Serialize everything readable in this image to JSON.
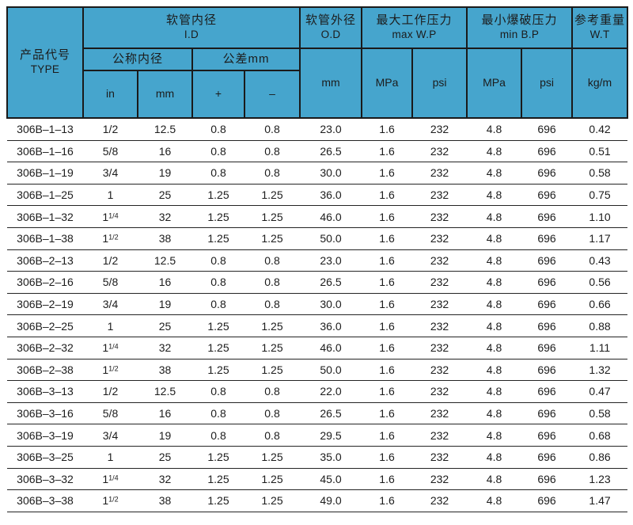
{
  "colors": {
    "header_bg": "#46a5cd",
    "border": "#1a1a1a",
    "body_text": "#1c1c1c"
  },
  "table": {
    "header": {
      "type_zh": "产品代号",
      "type_en": "TYPE",
      "id_zh": "软管内径",
      "id_en": "I.D",
      "nominal": "公称内径",
      "tolerance": "公差mm",
      "unit_in": "in",
      "unit_mm": "mm",
      "plus": "+",
      "minus": "–",
      "od_zh": "软管外径",
      "od_en": "O.D",
      "od_unit": "mm",
      "wp_zh": "最大工作压力",
      "wp_en": "max W.P",
      "wp_unit_mpa": "MPa",
      "wp_unit_psi": "psi",
      "bp_zh": "最小爆破压力",
      "bp_en": "min B.P",
      "bp_unit_mpa": "MPa",
      "bp_unit_psi": "psi",
      "wt_zh": "参考重量",
      "wt_en": "W.T",
      "wt_unit": "kg/m"
    },
    "columns": [
      "code",
      "in",
      "mm",
      "plus",
      "minus",
      "od",
      "wp-mpa",
      "wp-psi",
      "bp-mpa",
      "bp-psi",
      "wt"
    ],
    "rows": [
      [
        "306B–1–13",
        "1/2",
        "12.5",
        "0.8",
        "0.8",
        "23.0",
        "1.6",
        "232",
        "4.8",
        "696",
        "0.42"
      ],
      [
        "306B–1–16",
        "5/8",
        "16",
        "0.8",
        "0.8",
        "26.5",
        "1.6",
        "232",
        "4.8",
        "696",
        "0.51"
      ],
      [
        "306B–1–19",
        "3/4",
        "19",
        "0.8",
        "0.8",
        "30.0",
        "1.6",
        "232",
        "4.8",
        "696",
        "0.58"
      ],
      [
        "306B–1–25",
        "1",
        "25",
        "1.25",
        "1.25",
        "36.0",
        "1.6",
        "232",
        "4.8",
        "696",
        "0.75"
      ],
      [
        "306B–1–32",
        "1 1/4",
        "32",
        "1.25",
        "1.25",
        "46.0",
        "1.6",
        "232",
        "4.8",
        "696",
        "1.10"
      ],
      [
        "306B–1–38",
        "1 1/2",
        "38",
        "1.25",
        "1.25",
        "50.0",
        "1.6",
        "232",
        "4.8",
        "696",
        "1.17"
      ],
      [
        "306B–2–13",
        "1/2",
        "12.5",
        "0.8",
        "0.8",
        "23.0",
        "1.6",
        "232",
        "4.8",
        "696",
        "0.43"
      ],
      [
        "306B–2–16",
        "5/8",
        "16",
        "0.8",
        "0.8",
        "26.5",
        "1.6",
        "232",
        "4.8",
        "696",
        "0.56"
      ],
      [
        "306B–2–19",
        "3/4",
        "19",
        "0.8",
        "0.8",
        "30.0",
        "1.6",
        "232",
        "4.8",
        "696",
        "0.66"
      ],
      [
        "306B–2–25",
        "1",
        "25",
        "1.25",
        "1.25",
        "36.0",
        "1.6",
        "232",
        "4.8",
        "696",
        "0.88"
      ],
      [
        "306B–2–32",
        "1 1/4",
        "32",
        "1.25",
        "1.25",
        "46.0",
        "1.6",
        "232",
        "4.8",
        "696",
        "1.11"
      ],
      [
        "306B–2–38",
        "1 1/2",
        "38",
        "1.25",
        "1.25",
        "50.0",
        "1.6",
        "232",
        "4.8",
        "696",
        "1.32"
      ],
      [
        "306B–3–13",
        "1/2",
        "12.5",
        "0.8",
        "0.8",
        "22.0",
        "1.6",
        "232",
        "4.8",
        "696",
        "0.47"
      ],
      [
        "306B–3–16",
        "5/8",
        "16",
        "0.8",
        "0.8",
        "26.5",
        "1.6",
        "232",
        "4.8",
        "696",
        "0.58"
      ],
      [
        "306B–3–19",
        "3/4",
        "19",
        "0.8",
        "0.8",
        "29.5",
        "1.6",
        "232",
        "4.8",
        "696",
        "0.68"
      ],
      [
        "306B–3–25",
        "1",
        "25",
        "1.25",
        "1.25",
        "35.0",
        "1.6",
        "232",
        "4.8",
        "696",
        "0.86"
      ],
      [
        "306B–3–32",
        "1 1/4",
        "32",
        "1.25",
        "1.25",
        "45.0",
        "1.6",
        "232",
        "4.8",
        "696",
        "1.23"
      ],
      [
        "306B–3–38",
        "1 1/2",
        "38",
        "1.25",
        "1.25",
        "49.0",
        "1.6",
        "232",
        "4.8",
        "696",
        "1.47"
      ]
    ]
  }
}
